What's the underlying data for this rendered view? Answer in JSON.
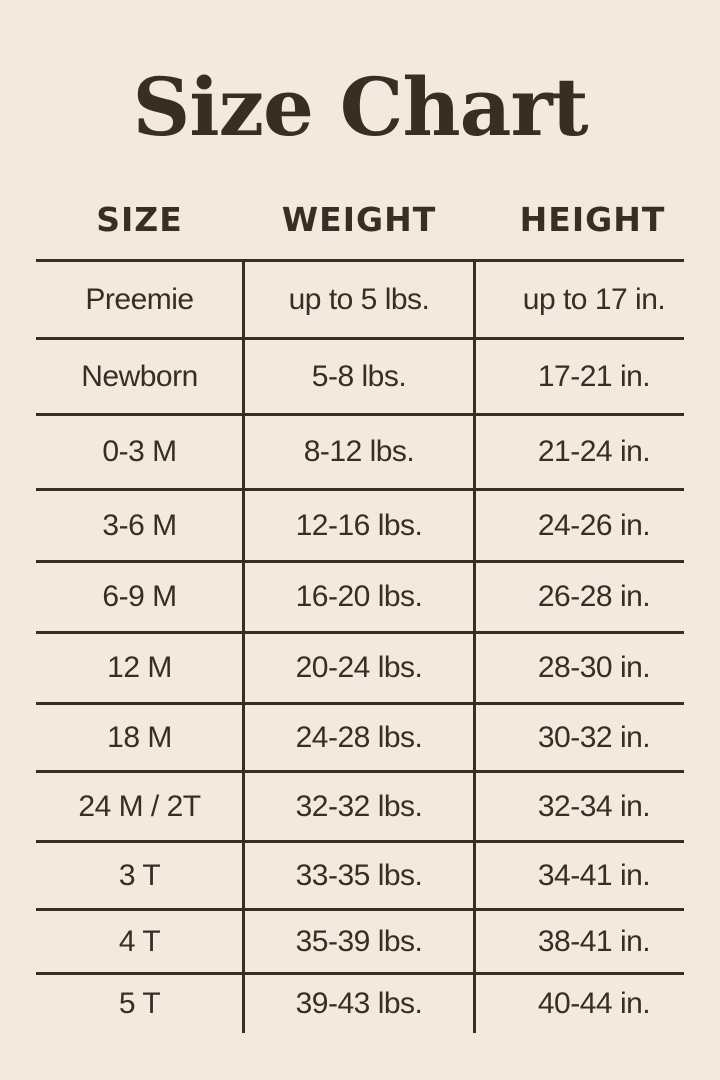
{
  "title": "Size Chart",
  "headers": [
    "SIZE",
    "WEIGHT",
    "HEIGHT"
  ],
  "rows": [
    [
      "Preemie",
      "up to 5 lbs.",
      "up to 17 in."
    ],
    [
      "Newborn",
      "5-8 lbs.",
      "17-21 in."
    ],
    [
      "0-3 M",
      "8-12 lbs.",
      "21-24 in."
    ],
    [
      "3-6 M",
      "12-16 lbs.",
      "24-26 in."
    ],
    [
      "6-9 M",
      "16-20 lbs.",
      "26-28 in."
    ],
    [
      "12 M",
      "20-24 lbs.",
      "28-30 in."
    ],
    [
      "18 M",
      "24-28 lbs.",
      "30-32 in."
    ],
    [
      "24 M / 2T",
      "32-32 lbs.",
      "32-34 in."
    ],
    [
      "3 T",
      "33-35 lbs.",
      "34-41 in."
    ],
    [
      "4 T",
      "35-39 lbs.",
      "38-41 in."
    ],
    [
      "5 T",
      "39-43 lbs.",
      "40-44 in."
    ]
  ],
  "colors": {
    "background": "#f2eade",
    "text": "#3a2d24"
  }
}
